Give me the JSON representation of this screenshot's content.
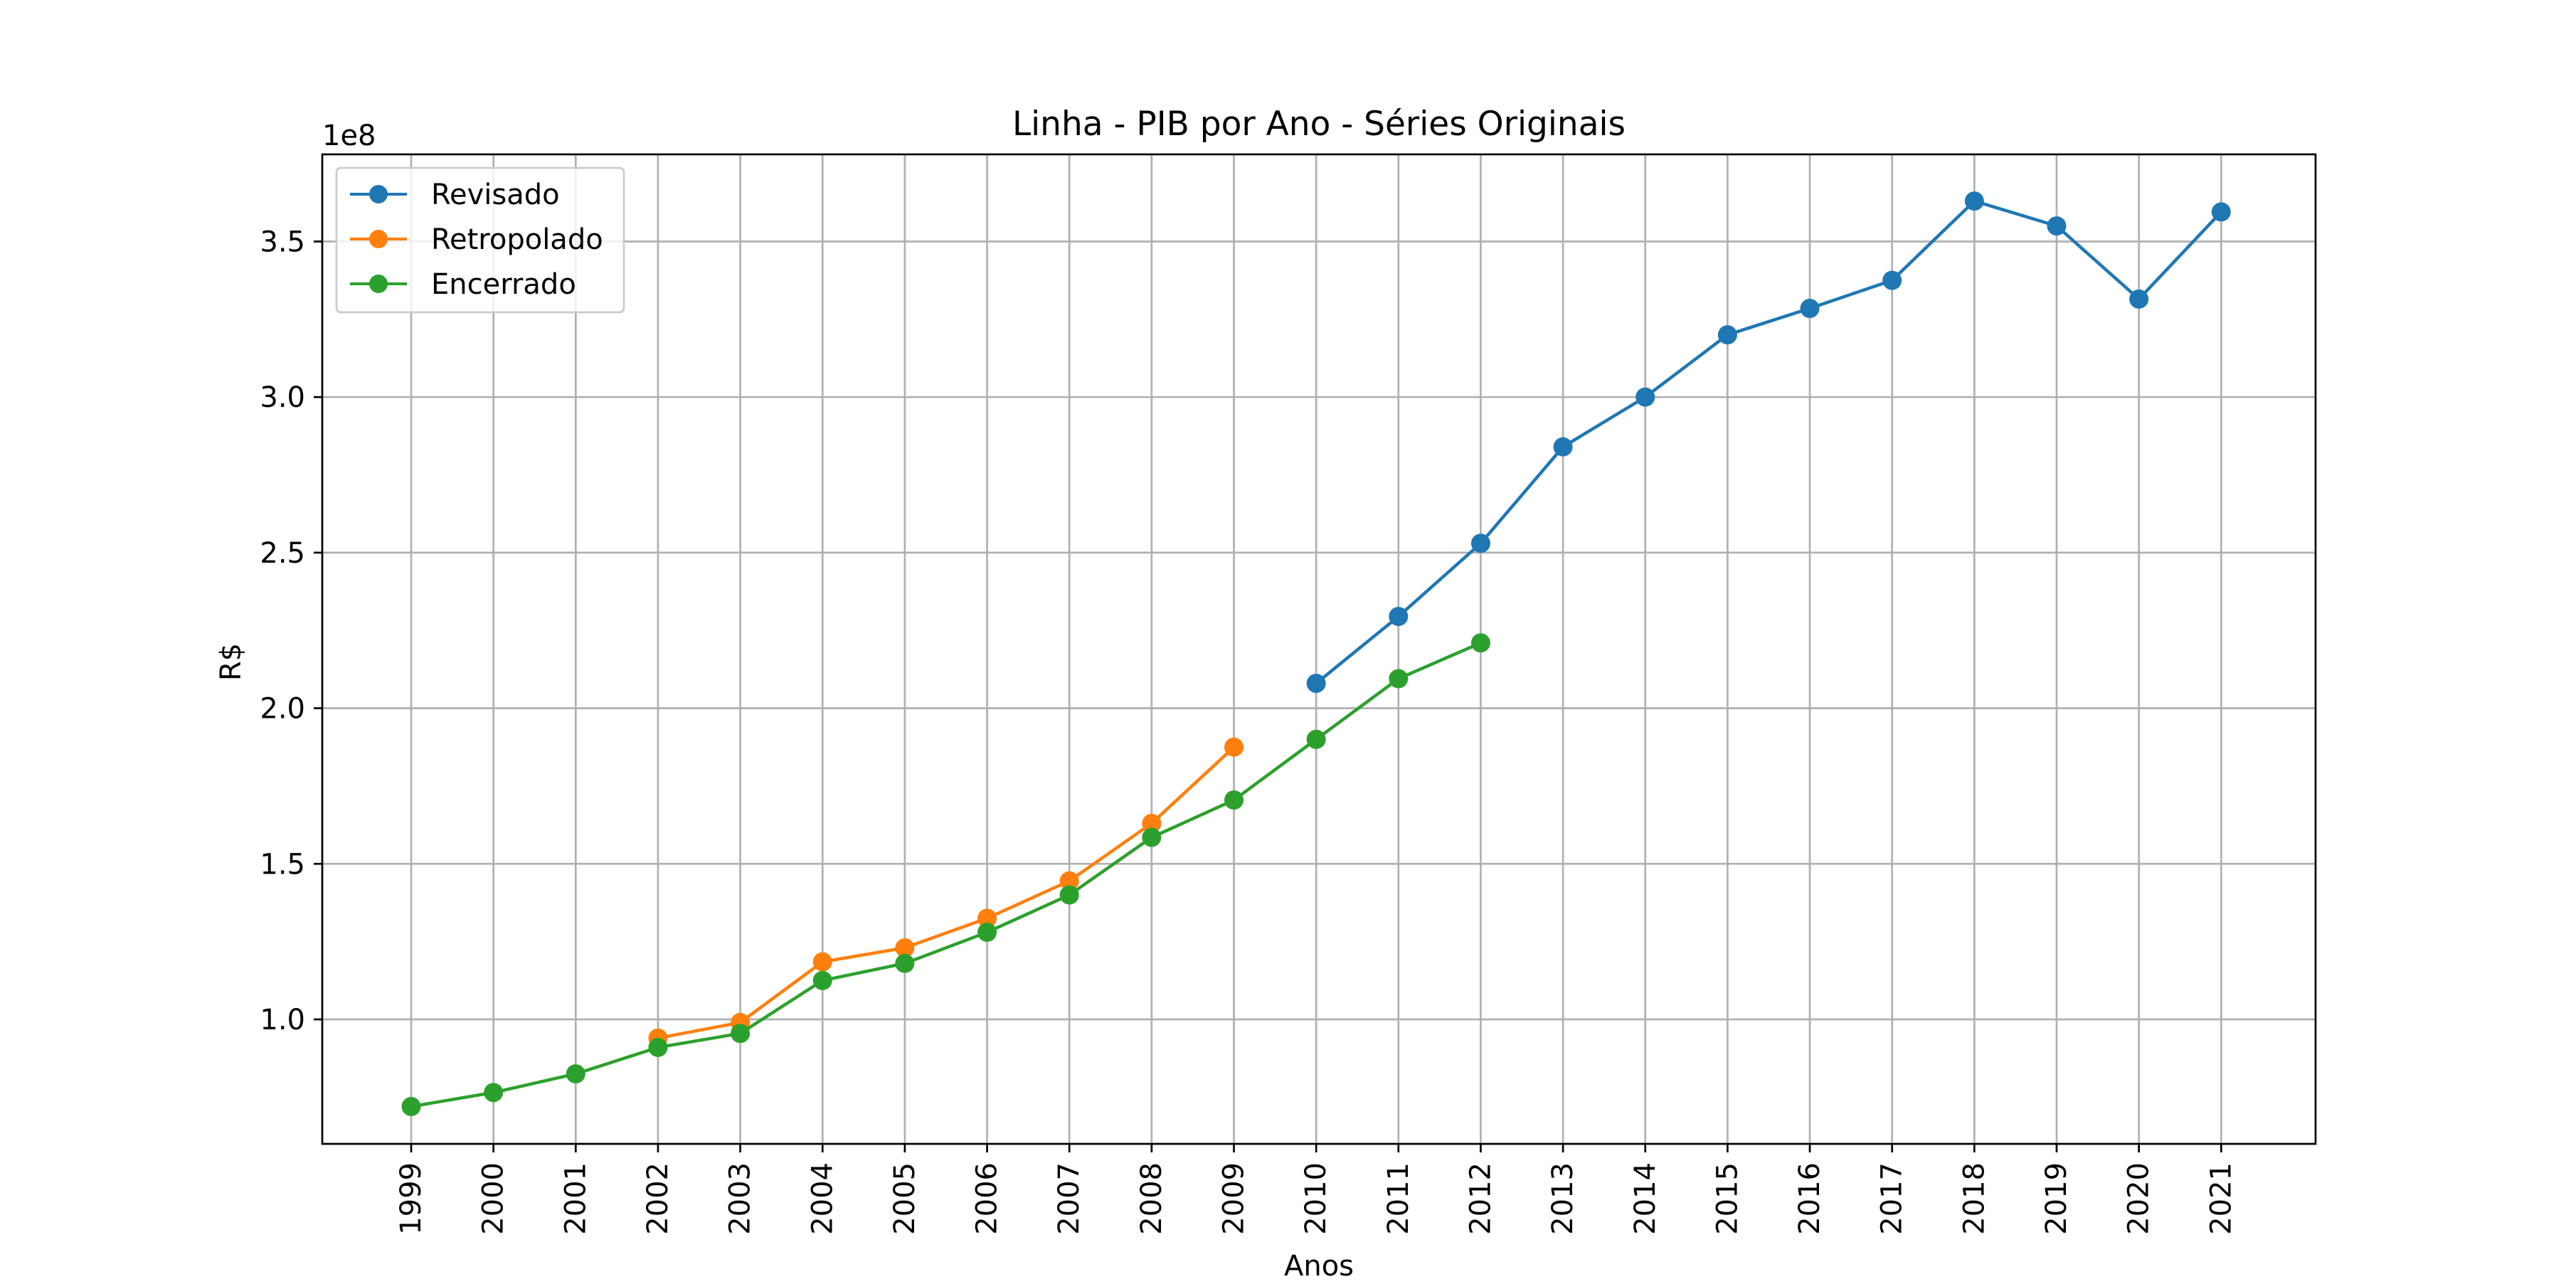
{
  "chart_data": {
    "type": "line",
    "title": "Linha - PIB por Ano - Séries Originais",
    "xlabel": "Anos",
    "ylabel": "R$",
    "y_offset_label": "1e8",
    "y_scale_factor": 100000000,
    "grid": true,
    "legend_position": "top-left",
    "categories": [
      "1999",
      "2000",
      "2001",
      "2002",
      "2003",
      "2004",
      "2005",
      "2006",
      "2007",
      "2008",
      "2009",
      "2010",
      "2011",
      "2012",
      "2013",
      "2014",
      "2015",
      "2016",
      "2017",
      "2018",
      "2019",
      "2020",
      "2021"
    ],
    "ylim": [
      0.6,
      3.78
    ],
    "yticks": [
      1.0,
      1.5,
      2.0,
      2.5,
      3.0,
      3.5
    ],
    "ytick_labels": [
      "1.0",
      "1.5",
      "2.0",
      "2.5",
      "3.0",
      "3.5"
    ],
    "series": [
      {
        "name": "Revisado",
        "color": "#1f77b4",
        "values": [
          null,
          null,
          null,
          null,
          null,
          null,
          null,
          null,
          null,
          null,
          null,
          2.08,
          2.295,
          2.53,
          2.84,
          3.0,
          3.2,
          3.285,
          3.375,
          3.63,
          3.55,
          3.315,
          3.595
        ]
      },
      {
        "name": "Retropolado",
        "color": "#ff7f0e",
        "values": [
          null,
          null,
          null,
          0.94,
          0.99,
          1.185,
          1.23,
          1.325,
          1.445,
          1.63,
          1.875,
          null,
          null,
          null,
          null,
          null,
          null,
          null,
          null,
          null,
          null,
          null,
          null
        ]
      },
      {
        "name": "Encerrado",
        "color": "#2ca02c",
        "values": [
          0.72,
          0.765,
          0.825,
          0.91,
          0.955,
          1.125,
          1.18,
          1.28,
          1.4,
          1.585,
          1.705,
          1.9,
          2.095,
          2.21,
          null,
          null,
          null,
          null,
          null,
          null,
          null,
          null,
          null
        ]
      }
    ]
  }
}
